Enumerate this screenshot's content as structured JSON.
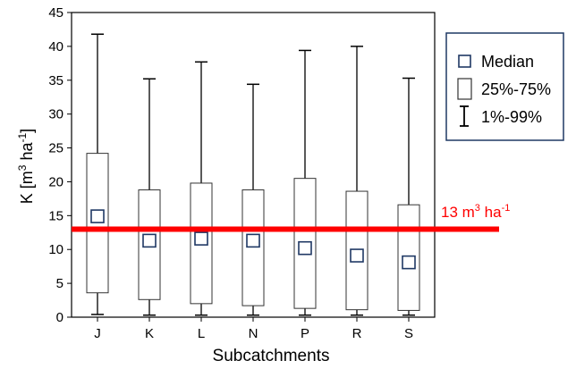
{
  "chart_data": {
    "type": "box",
    "xlabel": "Subcatchments",
    "ylabel_main": "K [m",
    "ylabel_sup1": "3",
    "ylabel_mid": " ha",
    "ylabel_sup2": "-1",
    "ylabel_end": "]",
    "ylim": [
      0,
      45
    ],
    "yticks": [
      "0",
      "5",
      "10",
      "15",
      "20",
      "25",
      "30",
      "35",
      "40",
      "45"
    ],
    "categories": [
      "J",
      "K",
      "L",
      "N",
      "P",
      "R",
      "S"
    ],
    "boxes": [
      {
        "name": "J",
        "p1": 0.4,
        "q1": 3.6,
        "median": 14.9,
        "q3": 24.2,
        "p99": 41.8
      },
      {
        "name": "K",
        "p1": 0.3,
        "q1": 2.6,
        "median": 11.3,
        "q3": 18.8,
        "p99": 35.2
      },
      {
        "name": "L",
        "p1": 0.3,
        "q1": 2.0,
        "median": 11.6,
        "q3": 19.8,
        "p99": 37.7
      },
      {
        "name": "N",
        "p1": 0.3,
        "q1": 1.7,
        "median": 11.3,
        "q3": 18.8,
        "p99": 34.4
      },
      {
        "name": "P",
        "p1": 0.3,
        "q1": 1.3,
        "median": 10.2,
        "q3": 20.5,
        "p99": 39.4
      },
      {
        "name": "R",
        "p1": 0.3,
        "q1": 1.1,
        "median": 9.1,
        "q3": 18.6,
        "p99": 40.0
      },
      {
        "name": "S",
        "p1": 0.3,
        "q1": 1.0,
        "median": 8.1,
        "q3": 16.6,
        "p99": 35.3
      }
    ],
    "reference_line": {
      "value": 13,
      "label_main": "13 m",
      "label_sup1": "3",
      "label_mid": " ha",
      "label_sup2": "-1",
      "color": "#ff0000"
    },
    "legend": {
      "position": "right",
      "items": [
        {
          "label": "Median",
          "symbol": "median-square"
        },
        {
          "label": "25%-75%",
          "symbol": "box"
        },
        {
          "label": "1%-99%",
          "symbol": "whisker"
        }
      ]
    },
    "colors": {
      "median": "#1f3864",
      "box": "#333333",
      "axis": "#000000",
      "legend_border": "#1f3864"
    },
    "grid": false
  }
}
